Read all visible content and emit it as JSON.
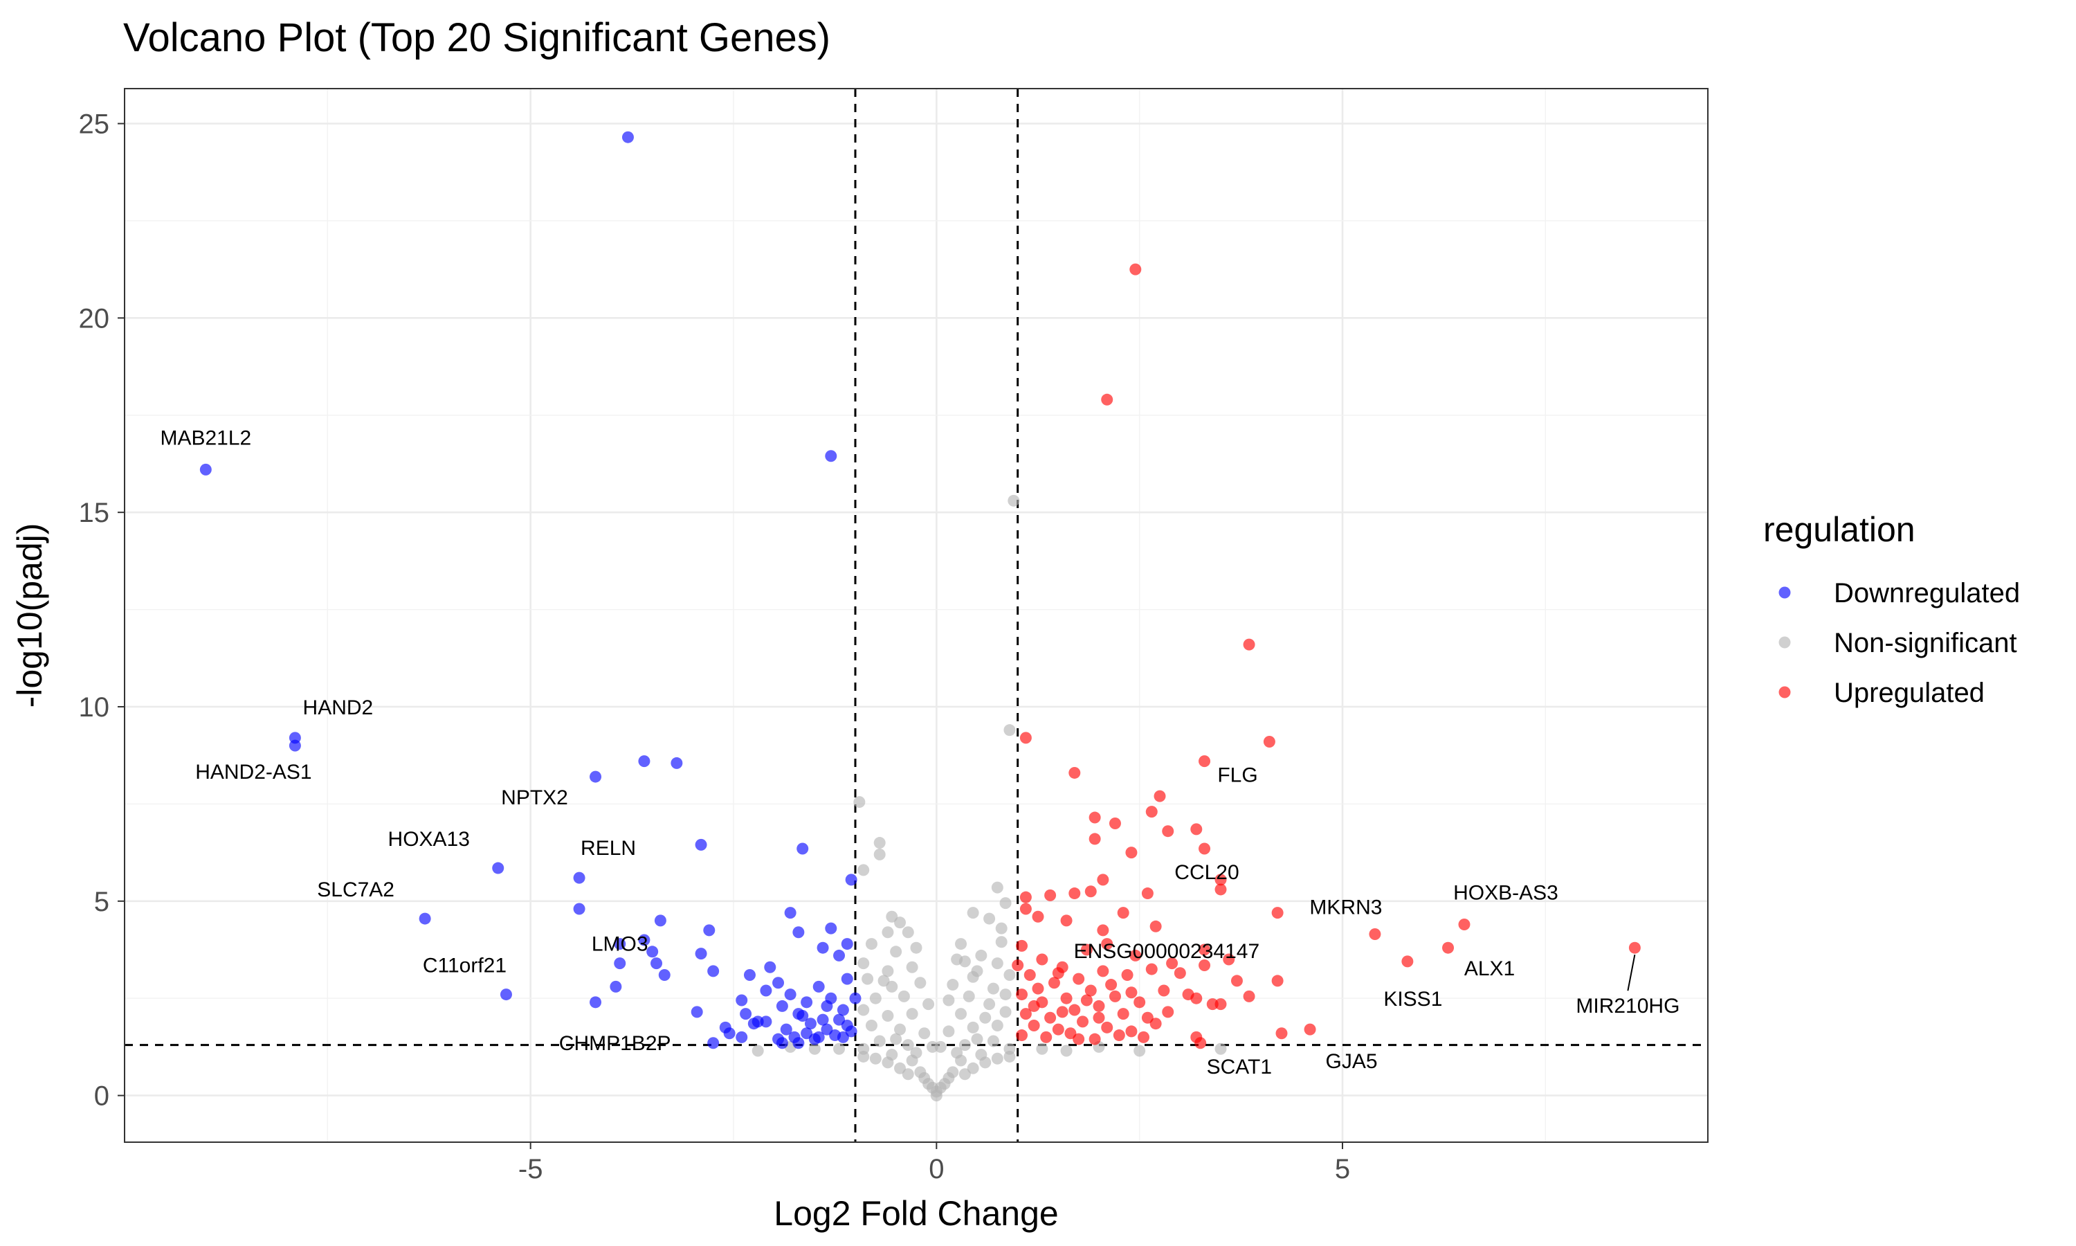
{
  "chart_data": {
    "type": "scatter",
    "title": "Volcano Plot (Top 20 Significant Genes)",
    "xlabel": "Log2 Fold Change",
    "ylabel": "-log10(padj)",
    "xlim": [
      -10,
      9.5
    ],
    "ylim": [
      -1.2,
      25.9
    ],
    "x_ticks": [
      -5,
      0,
      5
    ],
    "y_ticks": [
      0,
      5,
      10,
      15,
      20,
      25
    ],
    "grid": true,
    "thresholds": {
      "log2fc": [
        -1,
        1
      ],
      "neg_log10_padj": 1.3
    },
    "legend": {
      "title": "regulation",
      "position": "right",
      "entries": [
        {
          "label": "Downregulated",
          "color": "#0000FF"
        },
        {
          "label": "Non-significant",
          "color": "#B3B3B3"
        },
        {
          "label": "Upregulated",
          "color": "#FF0000"
        }
      ]
    },
    "series": [
      {
        "name": "Downregulated",
        "color": "#0000FF",
        "points": [
          [
            -3.8,
            24.65
          ],
          [
            -1.3,
            16.45
          ],
          [
            -9.0,
            16.1
          ],
          [
            -7.9,
            9.2
          ],
          [
            -7.9,
            9.0
          ],
          [
            -3.6,
            8.6
          ],
          [
            -3.2,
            8.55
          ],
          [
            -4.2,
            8.2
          ],
          [
            -2.9,
            6.45
          ],
          [
            -1.65,
            6.35
          ],
          [
            -5.4,
            5.85
          ],
          [
            -4.4,
            5.6
          ],
          [
            -1.05,
            5.55
          ],
          [
            -6.3,
            4.55
          ],
          [
            -4.4,
            4.8
          ],
          [
            -3.4,
            4.5
          ],
          [
            -2.8,
            4.25
          ],
          [
            -1.8,
            4.7
          ],
          [
            -1.3,
            4.3
          ],
          [
            -1.7,
            4.2
          ],
          [
            -1.4,
            3.8
          ],
          [
            -3.9,
            3.9
          ],
          [
            -3.6,
            4.0
          ],
          [
            -3.5,
            3.7
          ],
          [
            -2.9,
            3.65
          ],
          [
            -1.1,
            3.9
          ],
          [
            -3.9,
            3.4
          ],
          [
            -3.45,
            3.4
          ],
          [
            -3.35,
            3.1
          ],
          [
            -2.75,
            3.2
          ],
          [
            -1.2,
            3.6
          ],
          [
            -2.05,
            3.3
          ],
          [
            -2.3,
            3.1
          ],
          [
            -1.95,
            2.9
          ],
          [
            -1.45,
            2.8
          ],
          [
            -1.1,
            3.0
          ],
          [
            -5.3,
            2.6
          ],
          [
            -4.2,
            2.4
          ],
          [
            -3.95,
            2.8
          ],
          [
            -2.95,
            2.15
          ],
          [
            -2.4,
            2.45
          ],
          [
            -2.1,
            2.7
          ],
          [
            -1.8,
            2.6
          ],
          [
            -1.6,
            2.4
          ],
          [
            -1.3,
            2.5
          ],
          [
            -1.15,
            2.2
          ],
          [
            -2.2,
            1.9
          ],
          [
            -1.9,
            2.3
          ],
          [
            -1.7,
            2.1
          ],
          [
            -1.55,
            1.85
          ],
          [
            -1.4,
            1.95
          ],
          [
            -1.1,
            1.8
          ],
          [
            -2.35,
            2.1
          ],
          [
            -2.1,
            1.9
          ],
          [
            -1.85,
            1.7
          ],
          [
            -1.6,
            1.6
          ],
          [
            -1.35,
            1.7
          ],
          [
            -1.15,
            1.5
          ],
          [
            -2.55,
            1.6
          ],
          [
            -2.4,
            1.5
          ],
          [
            -1.95,
            1.45
          ],
          [
            -1.75,
            1.5
          ],
          [
            -1.5,
            1.45
          ],
          [
            -1.25,
            1.55
          ],
          [
            -2.75,
            1.35
          ],
          [
            -1.05,
            1.65
          ],
          [
            -2.25,
            1.85
          ],
          [
            -1.65,
            2.05
          ],
          [
            -1.45,
            1.5
          ],
          [
            -1.0,
            2.5
          ],
          [
            -1.9,
            1.35
          ],
          [
            -1.7,
            1.35
          ],
          [
            -1.2,
            1.95
          ],
          [
            -2.6,
            1.75
          ],
          [
            -1.35,
            2.3
          ]
        ]
      },
      {
        "name": "Upregulated",
        "color": "#FF0000",
        "points": [
          [
            2.45,
            21.25
          ],
          [
            2.1,
            17.9
          ],
          [
            3.85,
            11.6
          ],
          [
            1.1,
            9.2
          ],
          [
            4.1,
            9.1
          ],
          [
            3.3,
            8.6
          ],
          [
            1.7,
            8.3
          ],
          [
            2.75,
            7.7
          ],
          [
            2.65,
            7.3
          ],
          [
            1.95,
            7.15
          ],
          [
            2.2,
            7.0
          ],
          [
            1.95,
            6.6
          ],
          [
            2.85,
            6.8
          ],
          [
            3.2,
            6.85
          ],
          [
            3.3,
            6.35
          ],
          [
            2.4,
            6.25
          ],
          [
            2.05,
            5.55
          ],
          [
            3.5,
            5.55
          ],
          [
            3.5,
            5.3
          ],
          [
            1.1,
            5.1
          ],
          [
            1.4,
            5.15
          ],
          [
            1.7,
            5.2
          ],
          [
            1.9,
            5.25
          ],
          [
            2.6,
            5.2
          ],
          [
            1.1,
            4.8
          ],
          [
            1.25,
            4.6
          ],
          [
            2.3,
            4.7
          ],
          [
            1.6,
            4.5
          ],
          [
            2.05,
            4.25
          ],
          [
            2.7,
            4.35
          ],
          [
            4.2,
            4.7
          ],
          [
            5.4,
            4.15
          ],
          [
            6.5,
            4.4
          ],
          [
            6.3,
            3.8
          ],
          [
            5.8,
            3.45
          ],
          [
            8.6,
            3.8
          ],
          [
            1.05,
            3.85
          ],
          [
            1.3,
            3.5
          ],
          [
            1.55,
            3.3
          ],
          [
            1.85,
            3.75
          ],
          [
            2.1,
            3.9
          ],
          [
            2.45,
            3.6
          ],
          [
            2.9,
            3.4
          ],
          [
            3.3,
            3.75
          ],
          [
            3.6,
            3.5
          ],
          [
            1.15,
            3.1
          ],
          [
            1.45,
            2.9
          ],
          [
            1.75,
            3.0
          ],
          [
            2.05,
            3.2
          ],
          [
            2.35,
            3.1
          ],
          [
            2.65,
            3.25
          ],
          [
            3.0,
            3.15
          ],
          [
            3.3,
            3.35
          ],
          [
            3.7,
            2.95
          ],
          [
            4.2,
            2.95
          ],
          [
            1.05,
            2.6
          ],
          [
            1.3,
            2.4
          ],
          [
            1.6,
            2.5
          ],
          [
            1.9,
            2.7
          ],
          [
            2.2,
            2.55
          ],
          [
            2.5,
            2.4
          ],
          [
            2.8,
            2.7
          ],
          [
            3.2,
            2.5
          ],
          [
            3.5,
            2.35
          ],
          [
            3.85,
            2.55
          ],
          [
            1.1,
            2.1
          ],
          [
            1.4,
            2.0
          ],
          [
            1.7,
            2.2
          ],
          [
            2.0,
            2.3
          ],
          [
            2.3,
            2.1
          ],
          [
            2.6,
            2.0
          ],
          [
            1.2,
            1.8
          ],
          [
            1.5,
            1.7
          ],
          [
            1.8,
            1.9
          ],
          [
            2.1,
            1.75
          ],
          [
            2.4,
            1.65
          ],
          [
            2.7,
            1.85
          ],
          [
            1.05,
            1.55
          ],
          [
            1.35,
            1.5
          ],
          [
            1.65,
            1.6
          ],
          [
            1.95,
            1.45
          ],
          [
            2.25,
            1.55
          ],
          [
            2.55,
            1.5
          ],
          [
            3.2,
            1.5
          ],
          [
            3.25,
            1.35
          ],
          [
            4.25,
            1.6
          ],
          [
            4.6,
            1.7
          ],
          [
            3.1,
            2.6
          ],
          [
            1.55,
            2.15
          ],
          [
            1.85,
            2.45
          ],
          [
            2.15,
            2.85
          ],
          [
            2.4,
            2.65
          ],
          [
            1.25,
            2.75
          ],
          [
            1.0,
            3.35
          ],
          [
            3.4,
            2.35
          ],
          [
            1.5,
            3.15
          ],
          [
            2.0,
            2.0
          ],
          [
            1.2,
            2.3
          ],
          [
            2.85,
            2.15
          ],
          [
            1.75,
            1.45
          ]
        ]
      },
      {
        "name": "Non-significant",
        "color": "#B3B3B3",
        "points": [
          [
            0.95,
            15.3
          ],
          [
            0.9,
            9.4
          ],
          [
            -0.95,
            7.55
          ],
          [
            -0.7,
            6.5
          ],
          [
            -0.7,
            6.2
          ],
          [
            -0.9,
            5.8
          ],
          [
            0.75,
            5.35
          ],
          [
            0.85,
            4.95
          ],
          [
            0.45,
            4.7
          ],
          [
            0.65,
            4.55
          ],
          [
            0.8,
            4.3
          ],
          [
            -0.55,
            4.6
          ],
          [
            -0.45,
            4.45
          ],
          [
            -0.6,
            4.2
          ],
          [
            -0.35,
            4.2
          ],
          [
            -0.8,
            3.9
          ],
          [
            -0.5,
            3.7
          ],
          [
            -0.25,
            3.8
          ],
          [
            0.3,
            3.9
          ],
          [
            0.55,
            3.6
          ],
          [
            0.8,
            3.95
          ],
          [
            -0.9,
            3.4
          ],
          [
            -0.6,
            3.2
          ],
          [
            -0.3,
            3.3
          ],
          [
            0.25,
            3.5
          ],
          [
            0.5,
            3.2
          ],
          [
            0.75,
            3.4
          ],
          [
            -0.85,
            3.0
          ],
          [
            -0.55,
            2.8
          ],
          [
            -0.2,
            2.9
          ],
          [
            0.2,
            2.85
          ],
          [
            0.45,
            3.05
          ],
          [
            0.7,
            2.75
          ],
          [
            0.9,
            3.1
          ],
          [
            -0.75,
            2.5
          ],
          [
            -0.4,
            2.55
          ],
          [
            -0.1,
            2.35
          ],
          [
            0.15,
            2.45
          ],
          [
            0.4,
            2.55
          ],
          [
            0.65,
            2.35
          ],
          [
            0.85,
            2.6
          ],
          [
            -0.9,
            2.2
          ],
          [
            -0.6,
            2.05
          ],
          [
            -0.3,
            2.1
          ],
          [
            0.3,
            2.1
          ],
          [
            0.6,
            2.0
          ],
          [
            0.85,
            2.15
          ],
          [
            -0.8,
            1.8
          ],
          [
            -0.45,
            1.7
          ],
          [
            -0.15,
            1.6
          ],
          [
            0.15,
            1.65
          ],
          [
            0.45,
            1.75
          ],
          [
            0.75,
            1.8
          ],
          [
            -0.7,
            1.4
          ],
          [
            -0.35,
            1.3
          ],
          [
            0.35,
            1.3
          ],
          [
            0.7,
            1.4
          ],
          [
            -0.9,
            1.2
          ],
          [
            0.9,
            1.2
          ],
          [
            -0.55,
            1.05
          ],
          [
            0.55,
            1.05
          ],
          [
            -0.3,
            0.9
          ],
          [
            0.3,
            0.9
          ],
          [
            -0.75,
            0.95
          ],
          [
            0.75,
            0.95
          ],
          [
            -0.2,
            0.6
          ],
          [
            0.2,
            0.6
          ],
          [
            -0.45,
            0.7
          ],
          [
            0.45,
            0.7
          ],
          [
            -0.1,
            0.3
          ],
          [
            0.1,
            0.3
          ],
          [
            0.0,
            0.1
          ],
          [
            -0.05,
            0.2
          ],
          [
            0.05,
            0.2
          ],
          [
            -0.6,
            0.85
          ],
          [
            0.6,
            0.85
          ],
          [
            -0.15,
            0.45
          ],
          [
            0.15,
            0.45
          ],
          [
            -0.35,
            0.55
          ],
          [
            0.35,
            0.55
          ],
          [
            -1.2,
            1.2
          ],
          [
            -1.5,
            1.2
          ],
          [
            -2.2,
            1.15
          ],
          [
            1.3,
            1.2
          ],
          [
            1.6,
            1.15
          ],
          [
            2.5,
            1.15
          ],
          [
            3.5,
            1.2
          ],
          [
            -1.8,
            1.25
          ],
          [
            2.0,
            1.25
          ],
          [
            0.0,
            0.0
          ],
          [
            -0.9,
            1.0
          ],
          [
            0.9,
            1.0
          ],
          [
            -0.25,
            1.1
          ],
          [
            0.25,
            1.1
          ],
          [
            -0.5,
            1.45
          ],
          [
            0.5,
            1.45
          ],
          [
            -0.05,
            1.25
          ],
          [
            0.05,
            1.25
          ],
          [
            -0.65,
            2.95
          ],
          [
            0.35,
            3.45
          ]
        ]
      }
    ],
    "labels": [
      {
        "text": "MAB21L2",
        "x": -9.0,
        "y": 16.1
      },
      {
        "text": "HAND2",
        "x": -7.9,
        "y": 9.2
      },
      {
        "text": "HAND2-AS1",
        "x": -7.9,
        "y": 9.0
      },
      {
        "text": "NPTX2",
        "x": -4.2,
        "y": 8.2
      },
      {
        "text": "HOXA13",
        "x": -5.4,
        "y": 5.85
      },
      {
        "text": "RELN",
        "x": -4.4,
        "y": 5.6
      },
      {
        "text": "SLC7A2",
        "x": -6.3,
        "y": 4.55
      },
      {
        "text": "LMO3",
        "x": -3.9,
        "y": 3.9
      },
      {
        "text": "C11orf21",
        "x": -5.3,
        "y": 2.6
      },
      {
        "text": "CHMP1B2P",
        "x": -2.75,
        "y": 1.35
      },
      {
        "text": "FLG",
        "x": 3.3,
        "y": 8.6
      },
      {
        "text": "CCL20",
        "x": 3.5,
        "y": 5.3
      },
      {
        "text": "MKRN3",
        "x": 5.4,
        "y": 4.15
      },
      {
        "text": "HOXB-AS3",
        "x": 6.5,
        "y": 4.4
      },
      {
        "text": "ALX1",
        "x": 6.3,
        "y": 3.8
      },
      {
        "text": "ENSG00000234147",
        "x": 1.3,
        "y": 3.5
      },
      {
        "text": "KISS1",
        "x": 5.8,
        "y": 3.45
      },
      {
        "text": "MIR210HG",
        "x": 8.6,
        "y": 3.8
      },
      {
        "text": "SCAT1",
        "x": 3.2,
        "y": 1.35
      },
      {
        "text": "GJA5",
        "x": 4.6,
        "y": 1.7
      }
    ]
  }
}
